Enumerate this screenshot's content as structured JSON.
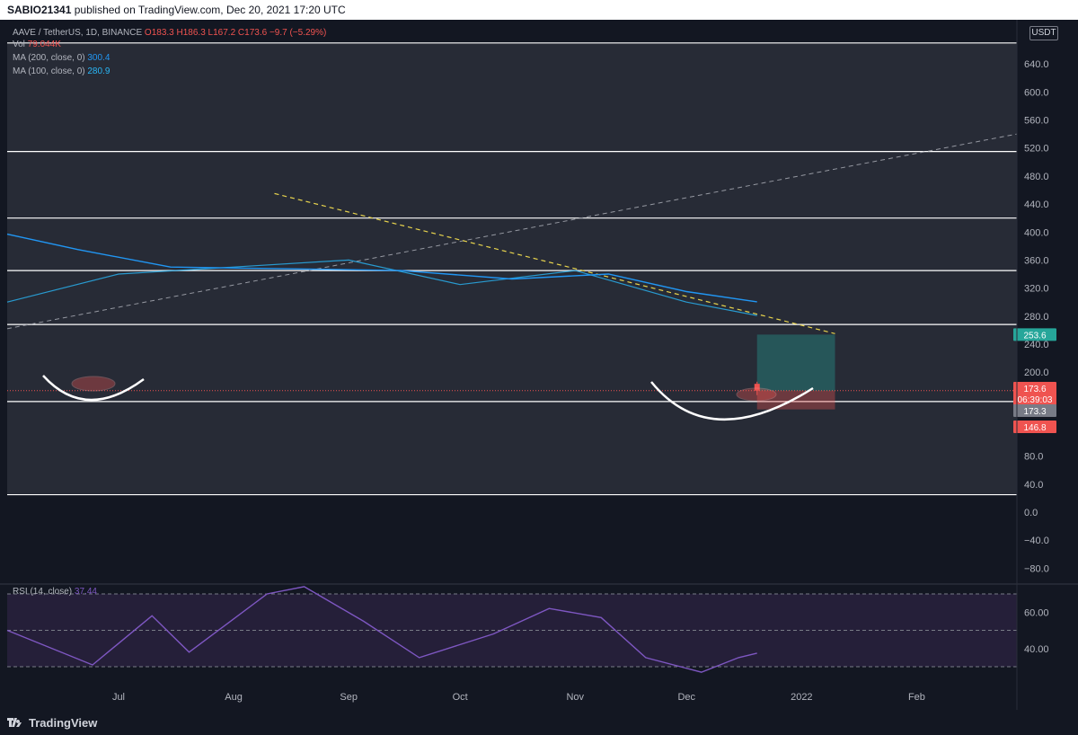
{
  "header": {
    "publisher": "SABIO21341",
    "text": "published on TradingView.com, Dec 20, 2021 17:20 UTC"
  },
  "legend": {
    "symbol": "AAVE / TetherUS, 1D, BINANCE",
    "o": "O183.3",
    "h": "H186.3",
    "l": "L167.2",
    "c": "C173.6",
    "chg": "−9.7 (−5.29%)",
    "vol_label": "Vol",
    "vol_value": "79.044K",
    "ma200_label": "MA (200, close, 0)",
    "ma200_value": "300.4",
    "ma100_label": "MA (100, close, 0)",
    "ma100_value": "280.9",
    "rsi_label": "RSI (14, close)",
    "rsi_value": "37.44"
  },
  "currency": "USDT",
  "footer": {
    "brand": "TradingView"
  },
  "colors": {
    "bg": "#131722",
    "zone": "#2a2e39",
    "up": "#26a69a",
    "down": "#ef5350",
    "ma200": "#2196f3",
    "rsi": "#7e57c2",
    "trend": "#e8d44d"
  },
  "price_badges": [
    {
      "value": "253.6",
      "color": "#26a69a"
    },
    {
      "value": "173.6",
      "color": "#ef5350"
    },
    {
      "value": "06:39:03",
      "color": "#ef5350"
    },
    {
      "value": "173.3",
      "color": "#787b86"
    },
    {
      "value": "146.8",
      "color": "#ef5350"
    }
  ],
  "chart_data": {
    "type": "candlestick",
    "symbol": "AAVE / TetherUS",
    "timeframe": "1D",
    "price_axis": {
      "range": [
        -100,
        680
      ],
      "ticks": [
        -80,
        -40,
        0,
        40,
        80,
        120,
        160,
        200,
        240,
        280,
        320,
        360,
        400,
        440,
        480,
        520,
        560,
        600,
        640
      ],
      "tick_labels": [
        "−80.0",
        "−40.0",
        "0.0",
        "40.0",
        "80.0",
        "120.0",
        "160.0",
        "200.0",
        "240.0",
        "280.0",
        "320.0",
        "360.0",
        "400.0",
        "440.0",
        "480.0",
        "520.0",
        "560.0",
        "600.0",
        "640.0"
      ]
    },
    "rsi_axis": {
      "ticks": [
        40,
        60
      ],
      "tick_labels": [
        "40.00",
        "60.00"
      ],
      "bands": [
        30,
        50,
        70
      ]
    },
    "x_axis": {
      "labels": [
        "Jul",
        "Aug",
        "Sep",
        "Oct",
        "Nov",
        "Dec",
        "2022",
        "Feb"
      ],
      "label_dates": [
        "2021-07-01",
        "2021-08-01",
        "2021-09-01",
        "2021-10-01",
        "2021-11-01",
        "2021-12-01",
        "2022-01-01",
        "2022-02-01"
      ]
    },
    "horizontal_levels": [
      670,
      515,
      420,
      345,
      268,
      158,
      25
    ],
    "shaded_zone": [
      25,
      670
    ],
    "trendline_downtrend": [
      {
        "date": "2021-08-12",
        "price": 455
      },
      {
        "date": "2022-01-10",
        "price": 255
      }
    ],
    "trendline_uptrend": [
      {
        "date": "2021-06-01",
        "price": 262
      },
      {
        "date": "2022-02-28",
        "price": 540
      }
    ],
    "position": {
      "entry": 173.3,
      "target": 253.6,
      "stop": 146.8,
      "start": "2021-12-20",
      "end": "2022-01-10"
    },
    "ohlc_last": {
      "open": 183.3,
      "high": 186.3,
      "low": 167.2,
      "close": 173.6
    },
    "ma200_last": 300.4,
    "ma100_last": 280.9,
    "rsi_last": 37.44,
    "volume_last": "79.044K",
    "ma200_series": [
      {
        "date": "2021-06-01",
        "value": 397
      },
      {
        "date": "2021-06-20",
        "value": 375
      },
      {
        "date": "2021-07-15",
        "value": 350
      },
      {
        "date": "2021-08-10",
        "value": 348
      },
      {
        "date": "2021-09-15",
        "value": 345
      },
      {
        "date": "2021-10-15",
        "value": 333
      },
      {
        "date": "2021-11-10",
        "value": 340
      },
      {
        "date": "2021-12-01",
        "value": 315
      },
      {
        "date": "2021-12-20",
        "value": 300.4
      }
    ],
    "ma100_series": [
      {
        "date": "2021-06-01",
        "value": 300
      },
      {
        "date": "2021-07-01",
        "value": 340
      },
      {
        "date": "2021-08-01",
        "value": 350
      },
      {
        "date": "2021-09-01",
        "value": 360
      },
      {
        "date": "2021-10-01",
        "value": 325
      },
      {
        "date": "2021-11-01",
        "value": 345
      },
      {
        "date": "2021-12-01",
        "value": 300
      },
      {
        "date": "2021-12-20",
        "value": 280.9
      }
    ],
    "rsi_series": [
      {
        "date": "2021-06-01",
        "value": 50
      },
      {
        "date": "2021-06-24",
        "value": 31
      },
      {
        "date": "2021-07-10",
        "value": 58
      },
      {
        "date": "2021-07-20",
        "value": 38
      },
      {
        "date": "2021-08-10",
        "value": 70
      },
      {
        "date": "2021-08-20",
        "value": 74
      },
      {
        "date": "2021-09-05",
        "value": 55
      },
      {
        "date": "2021-09-20",
        "value": 35
      },
      {
        "date": "2021-10-10",
        "value": 48
      },
      {
        "date": "2021-10-25",
        "value": 62
      },
      {
        "date": "2021-11-08",
        "value": 57
      },
      {
        "date": "2021-11-20",
        "value": 35
      },
      {
        "date": "2021-12-05",
        "value": 27
      },
      {
        "date": "2021-12-15",
        "value": 35
      },
      {
        "date": "2021-12-20",
        "value": 37.44
      }
    ]
  }
}
